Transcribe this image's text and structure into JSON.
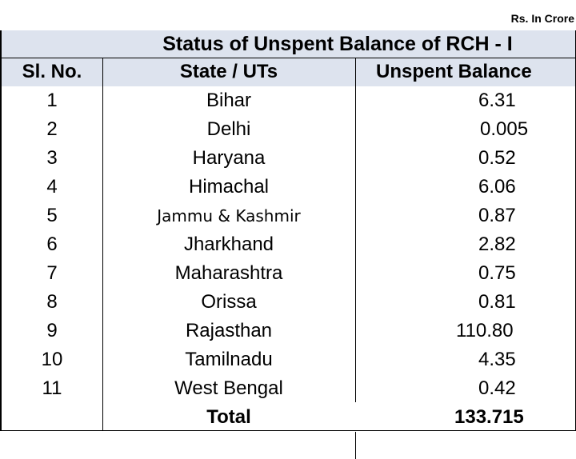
{
  "unit_label": "Rs. In Crore",
  "title": "Status of Unspent Balance of RCH - I",
  "headers": {
    "sl_no": "Sl. No.",
    "state": "State / UTs",
    "balance": "Unspent Balance"
  },
  "rows": [
    {
      "no": "1",
      "state": "Bihar",
      "balance": "6.31"
    },
    {
      "no": "2",
      "state": "Delhi",
      "balance": "0.005"
    },
    {
      "no": "3",
      "state": "Haryana",
      "balance": "0.52"
    },
    {
      "no": "4",
      "state": "Himachal",
      "balance": "6.06"
    },
    {
      "no": "5",
      "state": "Jammu & Kashmir",
      "balance": "0.87"
    },
    {
      "no": "6",
      "state": "Jharkhand",
      "balance": "2.82"
    },
    {
      "no": "7",
      "state": "Maharashtra",
      "balance": "0.75"
    },
    {
      "no": "8",
      "state": "Orissa",
      "balance": "0.81"
    },
    {
      "no": "9",
      "state": "Rajasthan",
      "balance": "110.80"
    },
    {
      "no": "10",
      "state": "Tamilnadu",
      "balance": "4.35"
    },
    {
      "no": "11",
      "state": "West Bengal",
      "balance": "0.42"
    }
  ],
  "total": {
    "label": "Total",
    "value": "133.715"
  },
  "colors": {
    "header_band": "#dde3ee",
    "border": "#000000"
  }
}
